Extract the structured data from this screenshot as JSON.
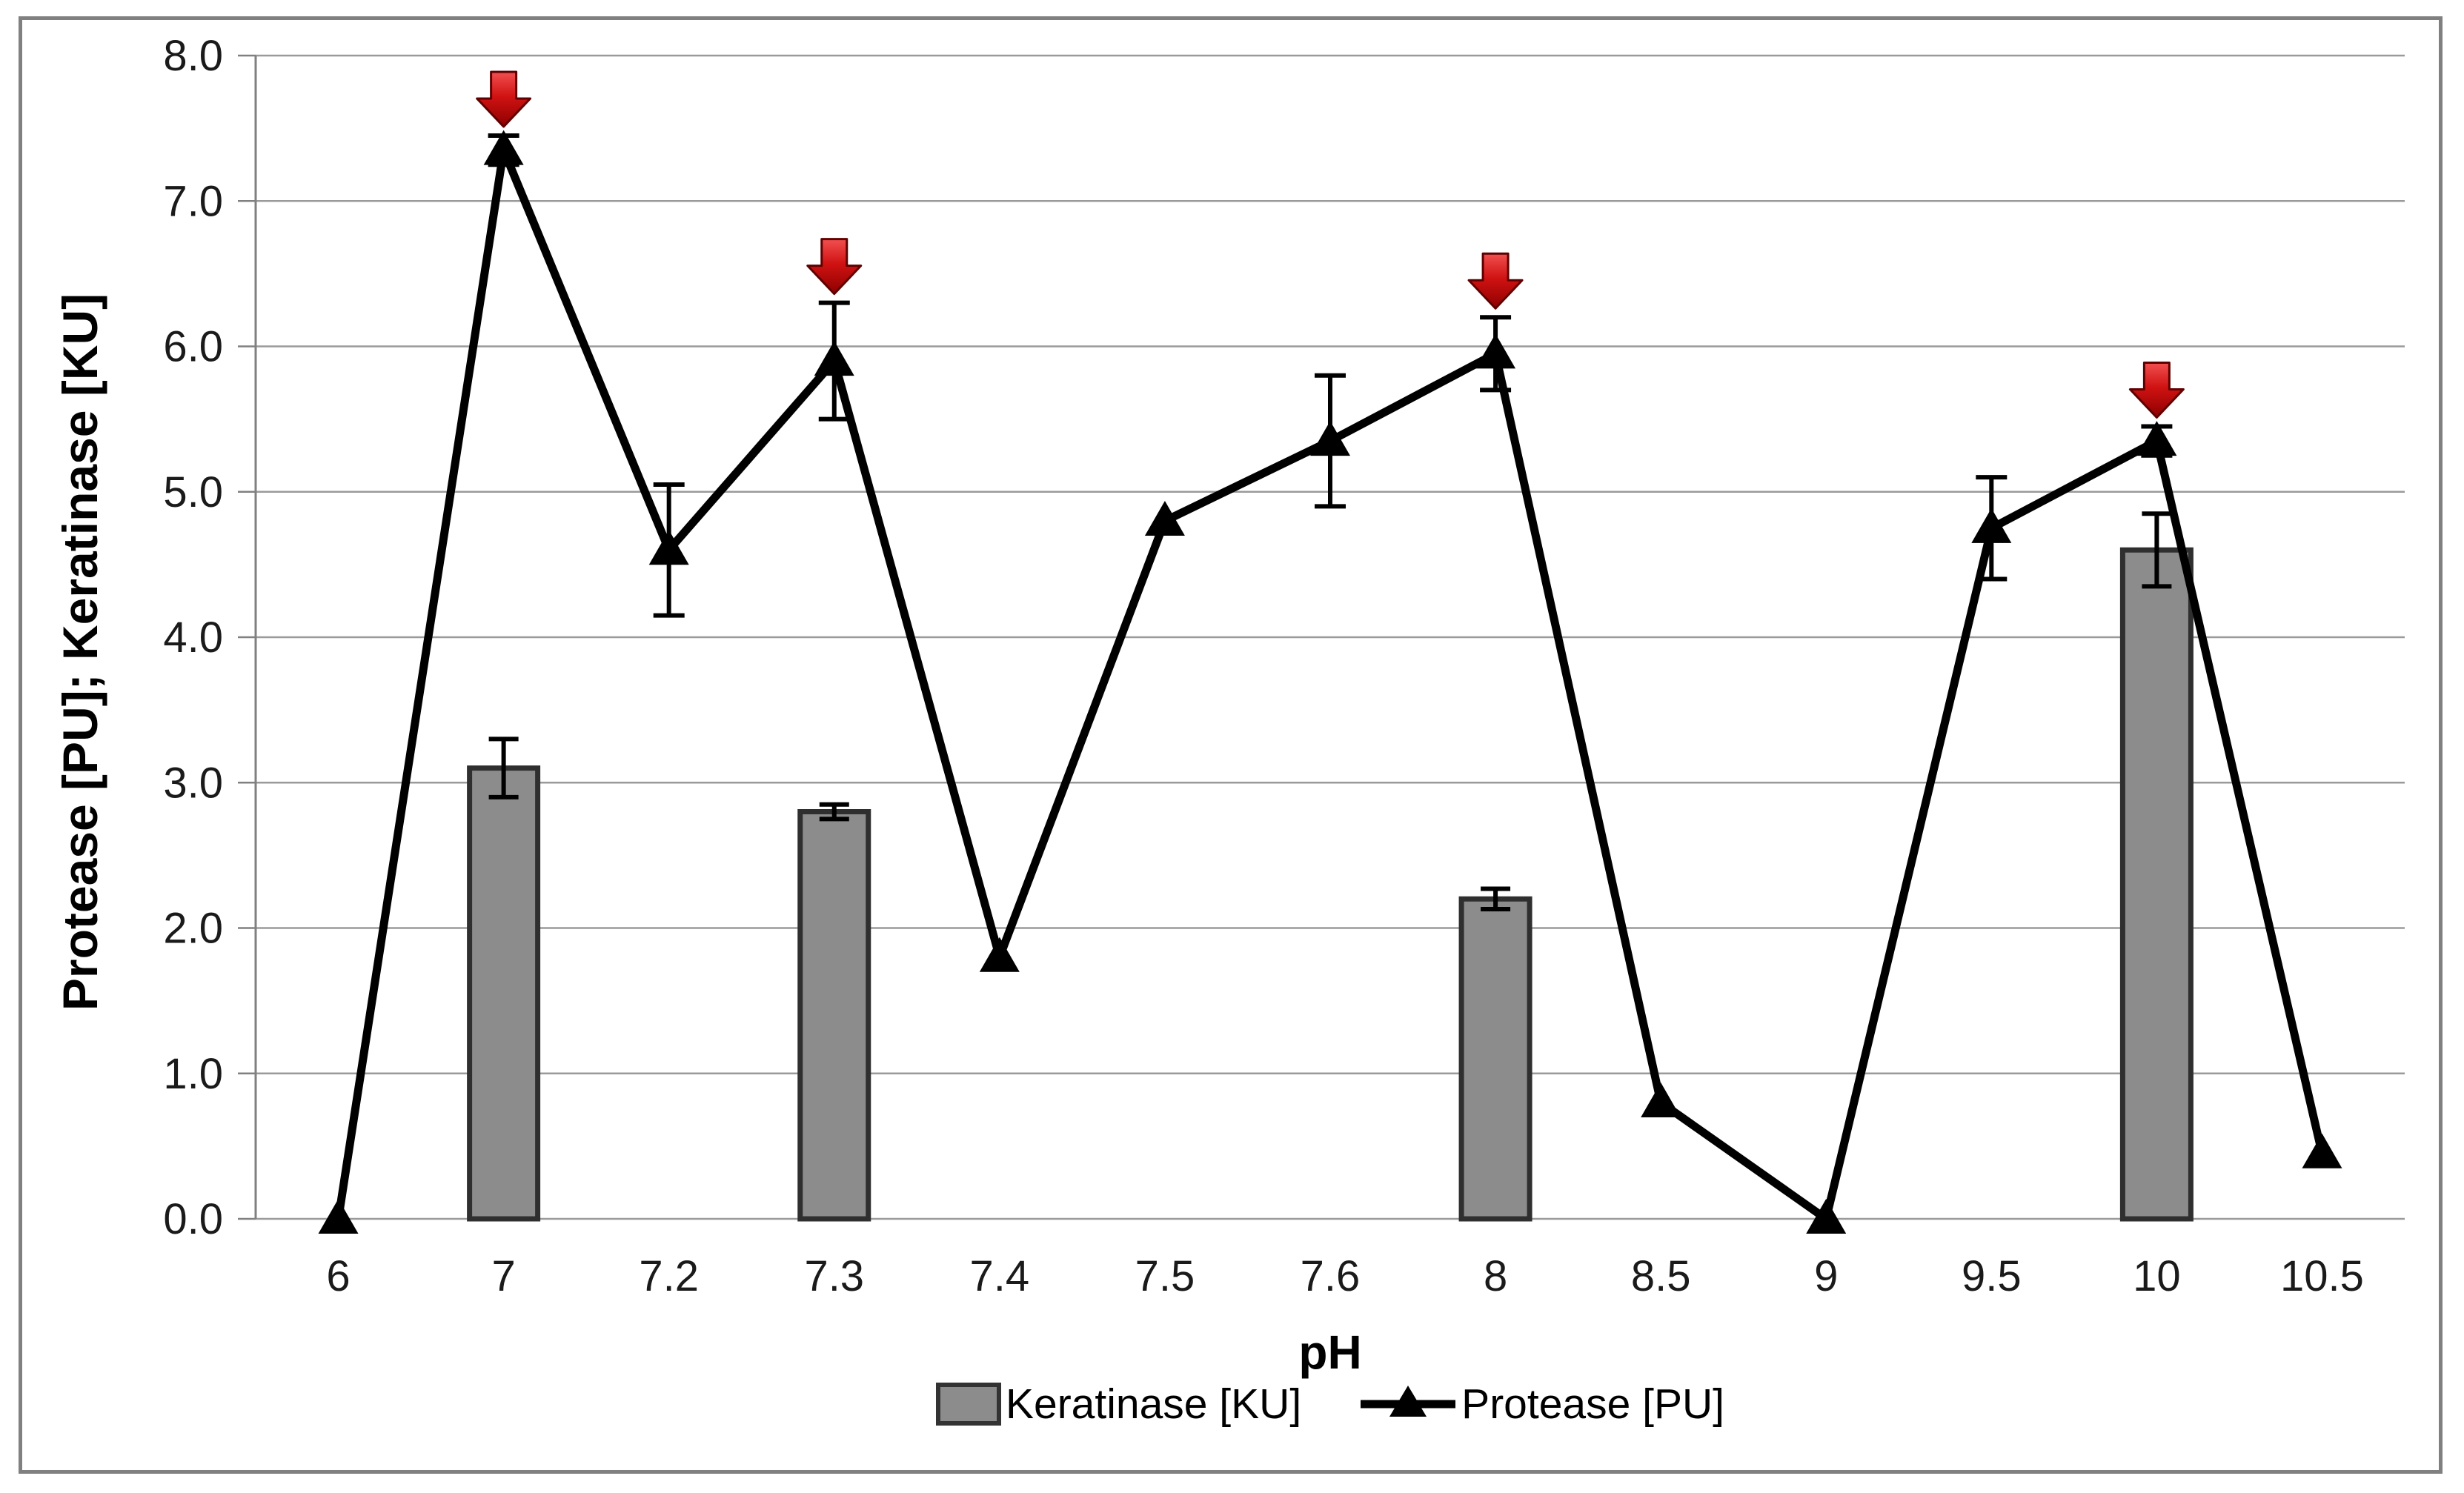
{
  "chart_data": {
    "type": "combo-bar-line",
    "categories": [
      "6",
      "7",
      "7.2",
      "7.3",
      "7.4",
      "7.5",
      "7.6",
      "8",
      "8.5",
      "9",
      "9.5",
      "10",
      "10.5"
    ],
    "xlabel": "pH",
    "ylabel": "Protease [PU]; Keratinase [KU]",
    "ylim": [
      0.0,
      8.0
    ],
    "ytick_step": 1.0,
    "ytick_decimals": 1,
    "grid": "horizontal",
    "legend_position": "bottom",
    "colors": {
      "bar_fill": "#8c8c8c",
      "bar_stroke": "#2f2f2f",
      "line": "#000000",
      "gridline": "#9a9a9a",
      "axis": "#808080",
      "arrow": "#cc0000"
    },
    "series": [
      {
        "name": "Keratinase [KU]",
        "type": "bar",
        "values": [
          null,
          3.1,
          null,
          2.8,
          null,
          null,
          null,
          2.2,
          null,
          null,
          null,
          4.6,
          null
        ],
        "errors": [
          null,
          0.2,
          null,
          0.05,
          null,
          null,
          null,
          0.07,
          null,
          null,
          null,
          0.25,
          null
        ]
      },
      {
        "name": "Protease [PU]",
        "type": "line",
        "marker": "triangle",
        "values": [
          0.0,
          7.35,
          4.6,
          5.9,
          1.8,
          4.8,
          5.35,
          5.95,
          0.8,
          0.0,
          4.75,
          5.35,
          0.45
        ],
        "errors": [
          null,
          0.1,
          0.45,
          0.4,
          null,
          null,
          0.45,
          0.25,
          null,
          null,
          0.35,
          0.1,
          null
        ]
      }
    ],
    "annotations": {
      "type": "down-arrow",
      "color": "#cc0000",
      "categories": [
        "7",
        "7.3",
        "8",
        "10"
      ]
    }
  }
}
